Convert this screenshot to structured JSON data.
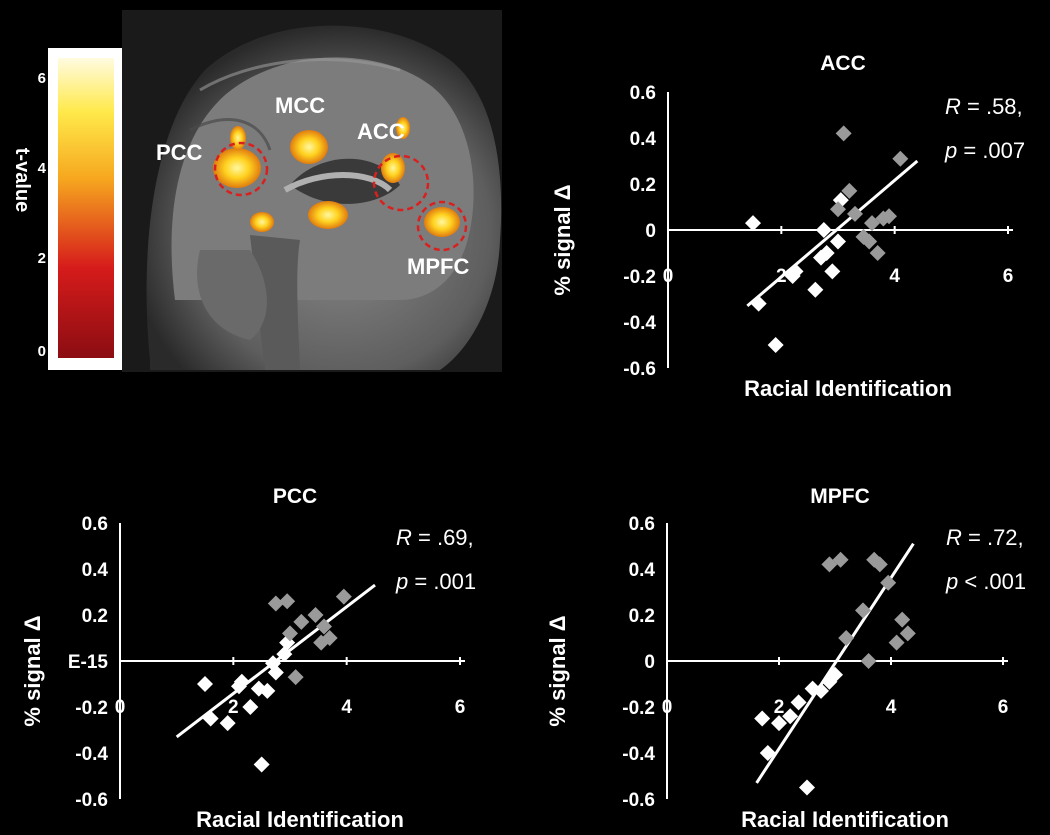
{
  "brain": {
    "colorbar_label": "t-value",
    "colorbar_ticks": [
      "0",
      "2",
      "4",
      "6"
    ],
    "colorbar_colors": [
      "#8b0d12",
      "#d61b1b",
      "#f6a81f",
      "#ffe94a",
      "#fffbe0"
    ],
    "regions": [
      "PCC",
      "MCC",
      "ACC",
      "MPFC"
    ]
  },
  "chart_data": [
    {
      "type": "scatter",
      "title": "ACC",
      "xlabel": "Racial Identification",
      "ylabel": "% signal Δ",
      "xlim": [
        0,
        6
      ],
      "ylim": [
        -0.6,
        0.6
      ],
      "xticks": [
        "0",
        "2",
        "4",
        "6"
      ],
      "yticks": [
        "0.6",
        "0.4",
        "0.2",
        "0",
        "-0.2",
        "-0.4",
        "-0.6"
      ],
      "stat_r": ".58,",
      "stat_p": ".007",
      "stat_r_prefix": "R = ",
      "stat_p_prefix": "p = ",
      "fit": [
        [
          1.4,
          -0.33
        ],
        [
          4.4,
          0.3
        ]
      ],
      "series": [
        {
          "color": "#ffffff",
          "points": [
            [
              1.5,
              0.03
            ],
            [
              1.6,
              -0.32
            ],
            [
              1.9,
              -0.5
            ],
            [
              2.2,
              -0.2
            ],
            [
              2.25,
              -0.18
            ],
            [
              2.6,
              -0.26
            ],
            [
              2.7,
              -0.12
            ],
            [
              2.8,
              -0.1
            ],
            [
              2.9,
              -0.18
            ],
            [
              2.75,
              0
            ],
            [
              3.0,
              -0.05
            ],
            [
              3.05,
              0.13
            ]
          ]
        },
        {
          "color": "#9a9a9a",
          "points": [
            [
              3.1,
              0.42
            ],
            [
              3.2,
              0.17
            ],
            [
              3.0,
              0.09
            ],
            [
              3.3,
              0.07
            ],
            [
              3.45,
              -0.03
            ],
            [
              3.55,
              -0.05
            ],
            [
              3.6,
              0.03
            ],
            [
              3.7,
              -0.1
            ],
            [
              3.8,
              0.05
            ],
            [
              3.9,
              0.06
            ],
            [
              4.1,
              0.31
            ]
          ]
        }
      ]
    },
    {
      "type": "scatter",
      "title": "PCC",
      "xlabel": "Racial Identification",
      "ylabel": "% signal Δ",
      "xlim": [
        0,
        6
      ],
      "ylim": [
        -0.6,
        0.6
      ],
      "xticks": [
        "0",
        "2",
        "4",
        "6"
      ],
      "yticks": [
        "0.6",
        "0.4",
        "0.2",
        "0",
        "-0.2",
        "-0.4",
        "-0.6"
      ],
      "zero_label": "E-15",
      "stat_r": ".69,",
      "stat_p": ".001",
      "stat_r_prefix": "R = ",
      "stat_p_prefix": "p = ",
      "fit": [
        [
          1.0,
          -0.33
        ],
        [
          4.5,
          0.33
        ]
      ],
      "series": [
        {
          "color": "#ffffff",
          "points": [
            [
              1.5,
              -0.1
            ],
            [
              1.6,
              -0.25
            ],
            [
              1.9,
              -0.27
            ],
            [
              2.1,
              -0.11
            ],
            [
              2.15,
              -0.09
            ],
            [
              2.3,
              -0.2
            ],
            [
              2.45,
              -0.12
            ],
            [
              2.6,
              -0.13
            ],
            [
              2.75,
              -0.05
            ],
            [
              2.7,
              -0.01
            ],
            [
              2.9,
              0.03
            ],
            [
              2.95,
              0.08
            ],
            [
              2.5,
              -0.45
            ]
          ]
        },
        {
          "color": "#9a9a9a",
          "points": [
            [
              2.75,
              0.25
            ],
            [
              2.95,
              0.26
            ],
            [
              3.0,
              0.12
            ],
            [
              3.2,
              0.17
            ],
            [
              3.45,
              0.2
            ],
            [
              3.55,
              0.08
            ],
            [
              3.7,
              0.1
            ],
            [
              3.95,
              0.28
            ],
            [
              3.1,
              -0.07
            ],
            [
              3.6,
              0.15
            ]
          ]
        }
      ]
    },
    {
      "type": "scatter",
      "title": "MPFC",
      "xlabel": "Racial Identification",
      "ylabel": "% signal Δ",
      "xlim": [
        0,
        6
      ],
      "ylim": [
        -0.6,
        0.6
      ],
      "xticks": [
        "0",
        "2",
        "4",
        "6"
      ],
      "yticks": [
        "0.6",
        "0.4",
        "0.2",
        "0",
        "-0.2",
        "-0.4",
        "-0.6"
      ],
      "stat_r": ".72,",
      "stat_p": ".001",
      "stat_r_prefix": "R = ",
      "stat_p_prefix": "p < ",
      "fit": [
        [
          1.6,
          -0.53
        ],
        [
          4.4,
          0.51
        ]
      ],
      "series": [
        {
          "color": "#ffffff",
          "points": [
            [
              1.7,
              -0.25
            ],
            [
              1.8,
              -0.4
            ],
            [
              2.0,
              -0.27
            ],
            [
              2.2,
              -0.24
            ],
            [
              2.35,
              -0.18
            ],
            [
              2.6,
              -0.12
            ],
            [
              2.75,
              -0.13
            ],
            [
              2.9,
              -0.09
            ],
            [
              3.0,
              -0.06
            ],
            [
              2.5,
              -0.55
            ]
          ]
        },
        {
          "color": "#9a9a9a",
          "points": [
            [
              2.9,
              0.42
            ],
            [
              3.1,
              0.44
            ],
            [
              3.2,
              0.1
            ],
            [
              3.5,
              0.22
            ],
            [
              3.6,
              0.0
            ],
            [
              3.7,
              0.44
            ],
            [
              3.8,
              0.42
            ],
            [
              3.95,
              0.34
            ],
            [
              4.1,
              0.08
            ],
            [
              4.3,
              0.12
            ],
            [
              4.2,
              0.18
            ]
          ]
        }
      ]
    }
  ]
}
